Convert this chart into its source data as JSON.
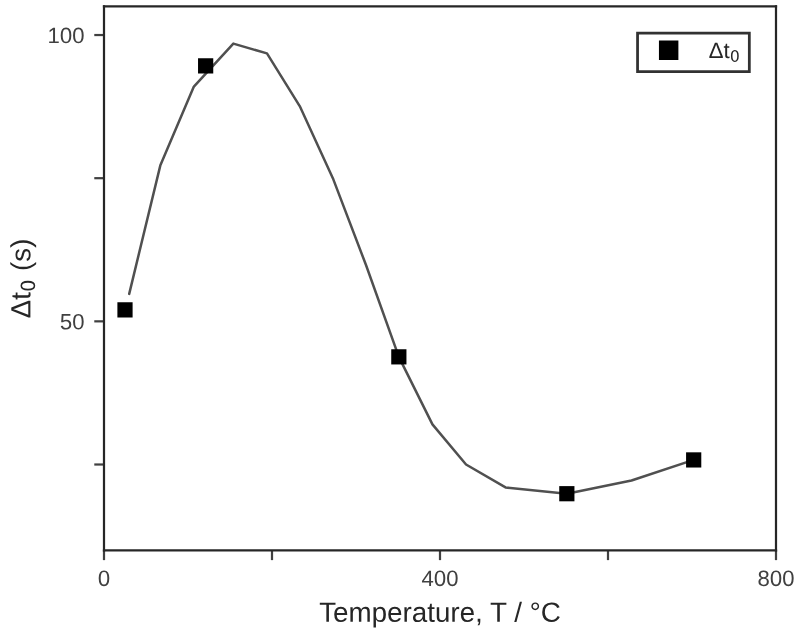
{
  "chart_data": {
    "type": "scatter",
    "xlabel": "Temperature, T / °C",
    "ylabel": "Δt$_{0}$ (s)",
    "xlim": [
      0,
      800
    ],
    "xticks": [
      0,
      {
        "value": 200,
        "label": null
      },
      400,
      {
        "value": 600,
        "label": null
      },
      800
    ],
    "ylim": [
      10,
      105
    ],
    "yticks": [
      {
        "value": 25,
        "label": null
      },
      50,
      {
        "value": 75,
        "label": null
      },
      100
    ],
    "grid": false,
    "legend": "top right",
    "series": [
      {
        "name": "Δt$_{0}$",
        "marker": "square",
        "color": "#000000",
        "x": [
          25,
          121,
          351,
          551,
          702
        ],
        "values": [
          52,
          94.6,
          43.8,
          19.9,
          25.8
        ]
      },
      {
        "type": "line",
        "color": "#505050",
        "marker": "none",
        "line_style": "solid",
        "x": [
          30,
          67,
          107,
          154,
          194,
          233,
          273,
          312,
          351,
          391,
          431,
          478,
          551,
          628,
          702
        ],
        "values": [
          54.8,
          77.2,
          91,
          98.5,
          96.8,
          87.6,
          74.8,
          59.8,
          43.8,
          32,
          25,
          21,
          19.9,
          22.2,
          25.8
        ]
      }
    ]
  }
}
